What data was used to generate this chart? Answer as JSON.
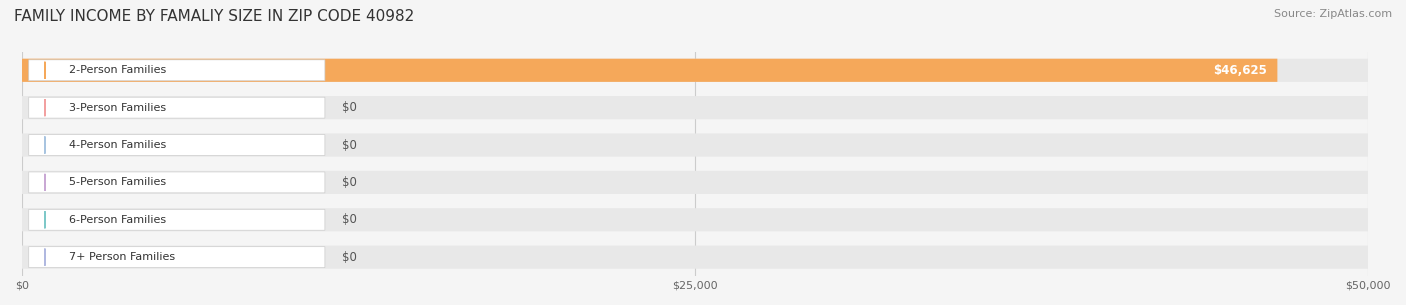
{
  "title": "FAMILY INCOME BY FAMALIY SIZE IN ZIP CODE 40982",
  "source": "Source: ZipAtlas.com",
  "categories": [
    "2-Person Families",
    "3-Person Families",
    "4-Person Families",
    "5-Person Families",
    "6-Person Families",
    "7+ Person Families"
  ],
  "values": [
    46625,
    0,
    0,
    0,
    0,
    0
  ],
  "bar_colors": [
    "#f5a85a",
    "#f2a0a0",
    "#a8c4e0",
    "#c9a8d4",
    "#7ec8c8",
    "#b0b8e0"
  ],
  "label_colors": [
    "#f5a85a",
    "#f2a0a0",
    "#a8c4e0",
    "#c9a8d4",
    "#7ec8c8",
    "#b0b8e0"
  ],
  "value_labels": [
    "$46,625",
    "$0",
    "$0",
    "$0",
    "$0",
    "$0"
  ],
  "xlim": [
    0,
    50000
  ],
  "xticks": [
    0,
    25000,
    50000
  ],
  "xtick_labels": [
    "$0",
    "$25,000",
    "$50,000"
  ],
  "background_color": "#f5f5f5",
  "bar_bg_color": "#e8e8e8",
  "title_fontsize": 11,
  "source_fontsize": 8,
  "label_fontsize": 8,
  "value_fontsize": 8.5
}
